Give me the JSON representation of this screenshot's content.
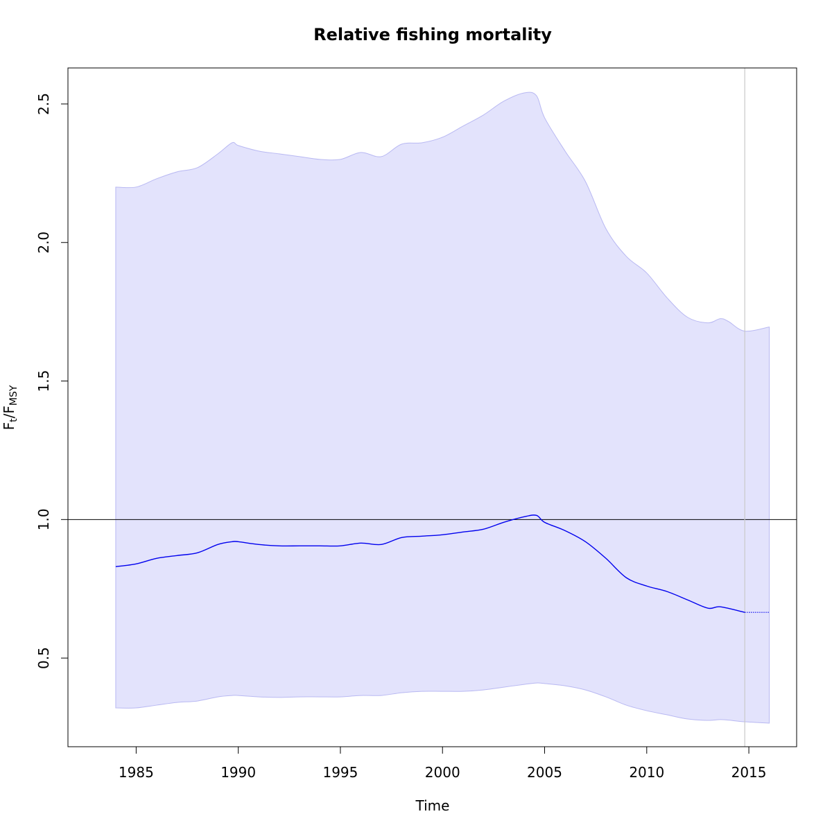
{
  "chart_data": {
    "type": "line",
    "title": "Relative fishing mortality",
    "xlabel": "Time",
    "ylabel": {
      "base": "F",
      "sub1": "t",
      "sep": "/",
      "base2": "F",
      "sub2": "MSY"
    },
    "xlim": [
      1981.66,
      2017.34
    ],
    "ylim": [
      0.18,
      2.63
    ],
    "x_ticks": [
      1985,
      1990,
      1995,
      2000,
      2005,
      2010,
      2015
    ],
    "y_ticks": [
      0.5,
      1.0,
      1.5,
      2.0,
      2.5
    ],
    "x_tick_labels": [
      "1985",
      "1990",
      "1995",
      "2000",
      "2005",
      "2010",
      "2015"
    ],
    "y_tick_labels": [
      "0.5",
      "1.0",
      "1.5",
      "2.0",
      "2.5"
    ],
    "reference_line": 1.0,
    "last_observation_x": 2014.8,
    "forecast_start": 2014.8,
    "colors": {
      "band_fill": "#e3e3fc",
      "band_edge": "#b8b8f2",
      "line": "#0000ee",
      "ref_line": "#000000",
      "vline": "#c8c8c8"
    },
    "series": [
      {
        "x": [
          1984,
          1985,
          1986,
          1987,
          1988,
          1989,
          1989.7,
          1990,
          1991,
          1992,
          1993,
          1994,
          1995,
          1996,
          1997,
          1998,
          1999,
          2000,
          2001,
          2002,
          2003,
          2004,
          2004.6,
          2005,
          2006,
          2007,
          2008,
          2009,
          2010,
          2011,
          2012,
          2013,
          2013.6,
          2014.8
        ],
        "values": [
          0.83,
          0.84,
          0.86,
          0.87,
          0.88,
          0.91,
          0.92,
          0.92,
          0.91,
          0.905,
          0.905,
          0.905,
          0.905,
          0.915,
          0.91,
          0.935,
          0.94,
          0.945,
          0.955,
          0.965,
          0.99,
          1.01,
          1.015,
          0.99,
          0.96,
          0.92,
          0.86,
          0.79,
          0.76,
          0.74,
          0.71,
          0.68,
          0.685,
          0.665
        ]
      },
      {
        "x": [
          2014.8,
          2016
        ],
        "values": [
          0.665,
          0.665
        ]
      }
    ],
    "confidence_band": {
      "x": [
        1984,
        1985,
        1986,
        1987,
        1988,
        1989,
        1989.7,
        1990,
        1991,
        1992,
        1993,
        1994,
        1995,
        1996,
        1997,
        1998,
        1999,
        2000,
        2001,
        2002,
        2003,
        2004,
        2004.6,
        2005,
        2006,
        2007,
        2008,
        2009,
        2010,
        2011,
        2012,
        2013,
        2013.6,
        2014,
        2014.8,
        2016
      ],
      "upper": [
        2.2,
        2.2,
        2.23,
        2.255,
        2.27,
        2.32,
        2.36,
        2.35,
        2.33,
        2.32,
        2.31,
        2.3,
        2.3,
        2.325,
        2.31,
        2.355,
        2.36,
        2.38,
        2.42,
        2.46,
        2.51,
        2.54,
        2.53,
        2.45,
        2.33,
        2.22,
        2.05,
        1.95,
        1.89,
        1.8,
        1.73,
        1.71,
        1.725,
        1.715,
        1.68,
        1.695
      ],
      "lower": [
        0.32,
        0.32,
        0.33,
        0.34,
        0.345,
        0.36,
        0.365,
        0.365,
        0.36,
        0.358,
        0.36,
        0.36,
        0.36,
        0.365,
        0.365,
        0.375,
        0.38,
        0.38,
        0.38,
        0.385,
        0.395,
        0.405,
        0.41,
        0.408,
        0.4,
        0.385,
        0.36,
        0.33,
        0.31,
        0.295,
        0.28,
        0.275,
        0.278,
        0.276,
        0.27,
        0.265
      ]
    }
  }
}
